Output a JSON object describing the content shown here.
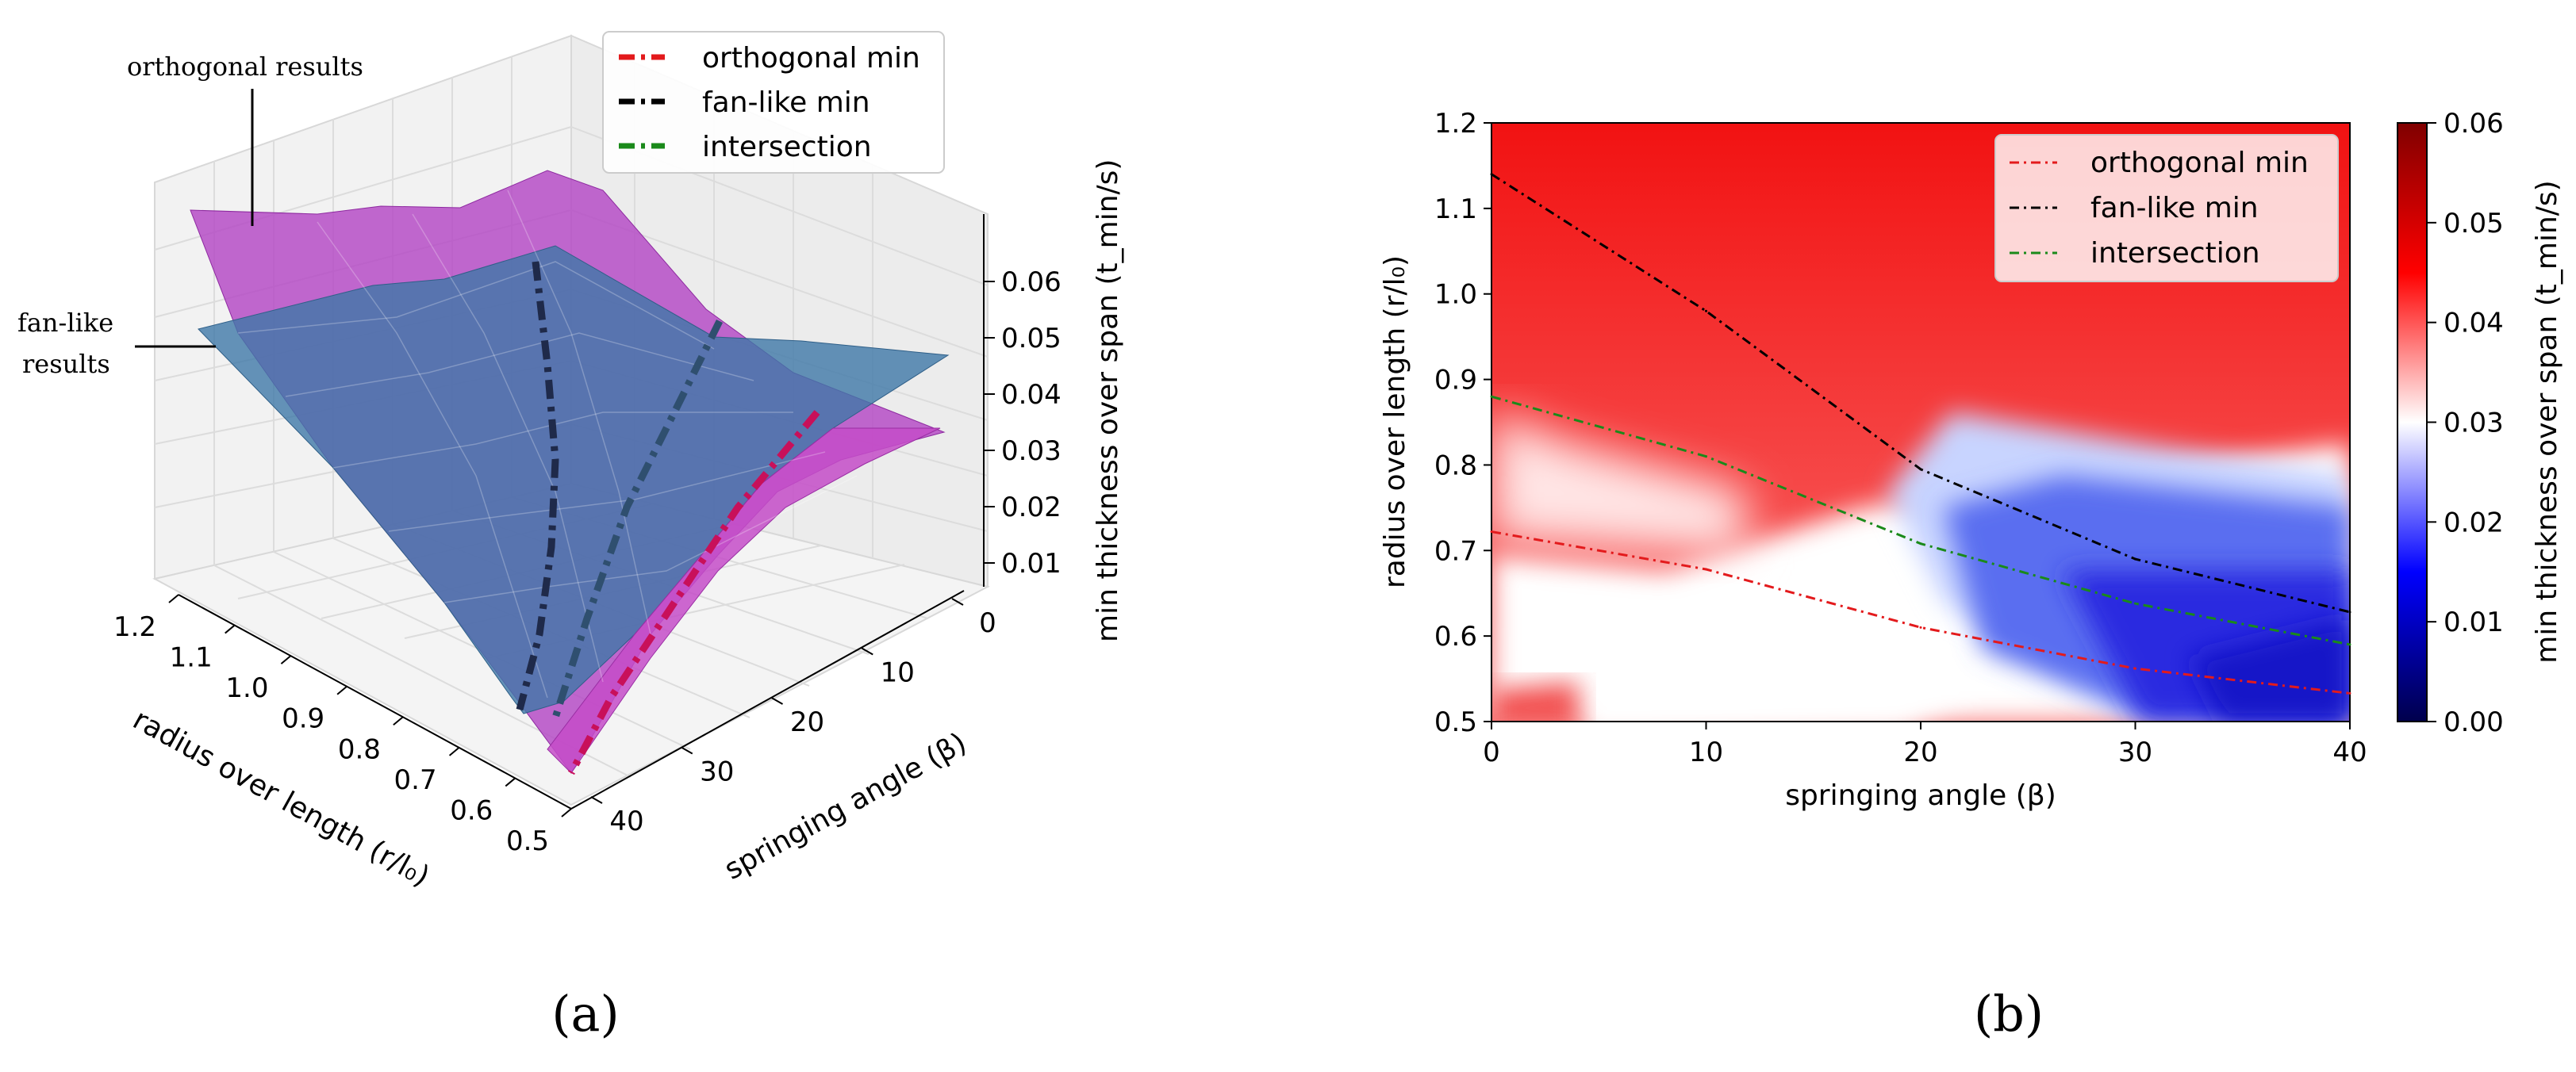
{
  "colors": {
    "orthogonal": "#e31a1c",
    "fanlike": "#000000",
    "intersection": "#1a8a1a",
    "surface_orthogonal": "#b03cbf",
    "surface_fanlike": "#4a7fa8"
  },
  "chart_data": [
    {
      "id": "a",
      "type": "surface3d",
      "caption": "(a)",
      "xlabel": "radius over length (r/l₀)",
      "ylabel": "springing angle (β)",
      "zlabel": "min thickness over span (t_min/s)",
      "r_ticks": [
        "1.2",
        "1.1",
        "1.0",
        "0.9",
        "0.8",
        "0.7",
        "0.6",
        "0.5"
      ],
      "beta_ticks": [
        "0",
        "10",
        "20",
        "30",
        "40"
      ],
      "z_ticks": [
        "0.01",
        "0.02",
        "0.03",
        "0.04",
        "0.05",
        "0.06"
      ],
      "annotations": [
        "orthogonal results",
        "fan-like",
        "results"
      ],
      "legend": [
        "orthogonal min",
        "fan-like min",
        "intersection"
      ]
    },
    {
      "id": "b",
      "type": "heatmap",
      "caption": "(b)",
      "xlabel": "springing angle (β)",
      "ylabel": "radius over length (r/l₀)",
      "xlim": [
        0,
        40
      ],
      "ylim": [
        0.5,
        1.2
      ],
      "x_ticks": [
        "0",
        "10",
        "20",
        "30",
        "40"
      ],
      "y_ticks": [
        "0.5",
        "0.6",
        "0.7",
        "0.8",
        "0.9",
        "1.0",
        "1.1",
        "1.2"
      ],
      "colorbar": {
        "label": "min thickness over span (t_min/s)",
        "range": [
          0.0,
          0.06
        ],
        "ticks": [
          "0.00",
          "0.01",
          "0.02",
          "0.03",
          "0.04",
          "0.05",
          "0.06"
        ]
      },
      "series": [
        {
          "name": "orthogonal min",
          "x": [
            0,
            10,
            20,
            30,
            40
          ],
          "y": [
            0.722,
            0.678,
            0.61,
            0.562,
            0.533
          ]
        },
        {
          "name": "fan-like min",
          "x": [
            0,
            10,
            20,
            30,
            40
          ],
          "y": [
            1.14,
            0.98,
            0.795,
            0.69,
            0.628
          ]
        },
        {
          "name": "intersection",
          "x": [
            0,
            10,
            20,
            30,
            40
          ],
          "y": [
            0.88,
            0.81,
            0.708,
            0.638,
            0.59
          ]
        }
      ],
      "legend": [
        "orthogonal min",
        "fan-like min",
        "intersection"
      ]
    }
  ]
}
